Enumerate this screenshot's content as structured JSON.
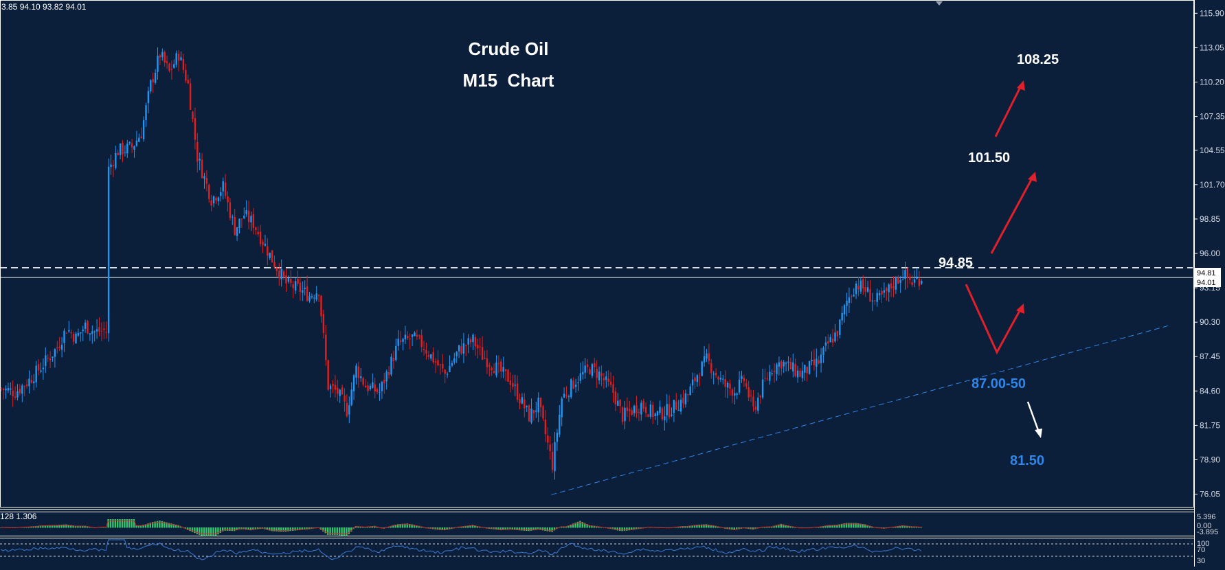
{
  "ohlc_header": "3.85 94.10 93.82 94.01",
  "title_line1": "Crude Oil",
  "title_line2": "M15  Chart",
  "annotations": {
    "a108": "108.25",
    "a101": "101.50",
    "a9485": "94.85",
    "a87": "87.00-50",
    "a815": "81.50"
  },
  "price_tags": {
    "upper": "94.81",
    "lower": "94.01"
  },
  "macd_label": "128 1.306",
  "macd_scale": [
    "5.396",
    "0.00",
    "-3.895"
  ],
  "rsi_scale": [
    "100",
    "70",
    "30"
  ],
  "colors": {
    "background": "#0b1e3a",
    "bull": "#2196f3",
    "bear": "#e02020",
    "trendline": "#2f86e8",
    "macd_hist": "#34c46b",
    "signal": "#d22a2a",
    "rsi": "#3a7bd5"
  },
  "chart_data": {
    "type": "candlestick",
    "instrument": "Crude Oil",
    "timeframe": "M15",
    "ylim": [
      75.0,
      117.0
    ],
    "yticks": [
      115.9,
      113.05,
      110.2,
      107.35,
      104.55,
      101.7,
      98.85,
      96.0,
      93.15,
      90.3,
      87.45,
      84.6,
      81.75,
      78.9,
      76.05
    ],
    "ytick_labels": [
      "115.90",
      "113.05",
      "110.20",
      "107.35",
      "104.55",
      "101.70",
      "98.85",
      "96.00",
      "93.15",
      "90.30",
      "87.45",
      "84.60",
      "81.75",
      "78.90",
      "76.05"
    ],
    "path_points": [
      [
        0,
        84.8
      ],
      [
        6,
        84.5
      ],
      [
        12,
        85.5
      ],
      [
        18,
        86.8
      ],
      [
        24,
        88.2
      ],
      [
        28,
        89.8
      ],
      [
        32,
        89.0
      ],
      [
        36,
        90.0
      ],
      [
        40,
        89.5
      ],
      [
        44,
        89.6
      ],
      [
        45,
        89.5
      ],
      [
        46,
        103.0
      ],
      [
        50,
        104.5
      ],
      [
        56,
        104.8
      ],
      [
        60,
        106.0
      ],
      [
        64,
        110.0
      ],
      [
        68,
        112.5
      ],
      [
        72,
        111.0
      ],
      [
        76,
        112.5
      ],
      [
        80,
        110.0
      ],
      [
        84,
        104.0
      ],
      [
        90,
        100.5
      ],
      [
        95,
        101.5
      ],
      [
        100,
        98.0
      ],
      [
        104,
        99.2
      ],
      [
        108,
        98.5
      ],
      [
        112,
        97.0
      ],
      [
        116,
        95.5
      ],
      [
        122,
        93.5
      ],
      [
        128,
        93.0
      ],
      [
        132,
        92.5
      ],
      [
        136,
        93.0
      ],
      [
        140,
        85.0
      ],
      [
        144,
        84.5
      ],
      [
        148,
        83.0
      ],
      [
        152,
        86.5
      ],
      [
        156,
        85.0
      ],
      [
        162,
        84.5
      ],
      [
        166,
        86.5
      ],
      [
        170,
        88.5
      ],
      [
        176,
        89.0
      ],
      [
        180,
        88.5
      ],
      [
        184,
        87.5
      ],
      [
        190,
        86.0
      ],
      [
        196,
        88.0
      ],
      [
        202,
        88.8
      ],
      [
        206,
        87.5
      ],
      [
        212,
        86.5
      ],
      [
        218,
        85.5
      ],
      [
        222,
        84.0
      ],
      [
        226,
        82.5
      ],
      [
        230,
        83.5
      ],
      [
        236,
        78.5
      ],
      [
        240,
        84.0
      ],
      [
        246,
        85.5
      ],
      [
        252,
        86.5
      ],
      [
        256,
        86.0
      ],
      [
        262,
        84.5
      ],
      [
        266,
        82.5
      ],
      [
        270,
        83.0
      ],
      [
        274,
        83.5
      ],
      [
        280,
        82.6
      ],
      [
        286,
        83.0
      ],
      [
        290,
        83.6
      ],
      [
        294,
        84.3
      ],
      [
        298,
        86.0
      ],
      [
        302,
        87.2
      ],
      [
        306,
        86.0
      ],
      [
        310,
        85.0
      ],
      [
        314,
        84.6
      ],
      [
        318,
        85.5
      ],
      [
        322,
        83.0
      ],
      [
        326,
        85.0
      ],
      [
        330,
        86.5
      ],
      [
        334,
        87.0
      ],
      [
        338,
        86.5
      ],
      [
        342,
        86.0
      ],
      [
        346,
        86.5
      ],
      [
        350,
        87.0
      ],
      [
        354,
        88.5
      ],
      [
        358,
        89.5
      ],
      [
        362,
        92.0
      ],
      [
        366,
        93.5
      ],
      [
        370,
        93.0
      ],
      [
        374,
        92.0
      ],
      [
        378,
        92.5
      ],
      [
        382,
        93.5
      ],
      [
        386,
        94.3
      ],
      [
        390,
        93.6
      ],
      [
        394,
        94.0
      ]
    ],
    "resistance_level": 94.81,
    "current_price": 94.01,
    "trendline": {
      "from": [
        236,
        76.0
      ],
      "to": [
        500,
        90.0
      ]
    },
    "macd": {
      "labels": [
        "5.396",
        "0.00",
        "-3.895"
      ]
    },
    "rsi": {
      "labels": [
        "100",
        "70",
        "30"
      ]
    }
  }
}
